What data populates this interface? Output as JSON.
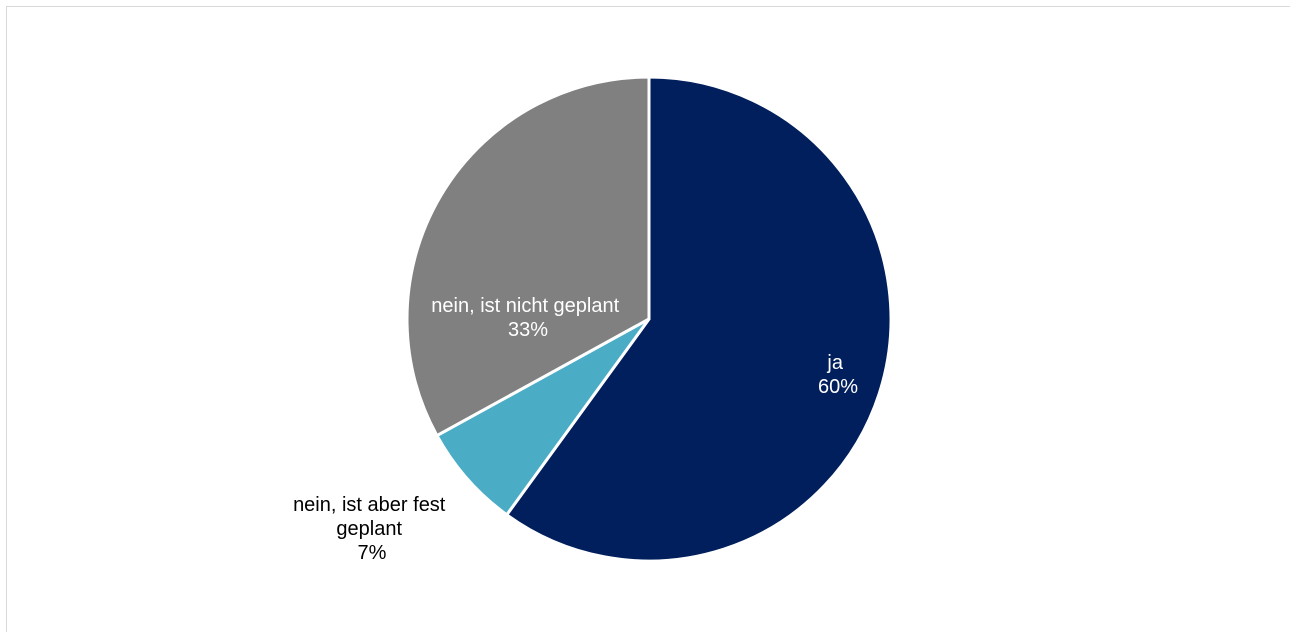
{
  "chart_data": {
    "type": "pie",
    "title": "",
    "start_angle_deg": 0,
    "direction": "clockwise",
    "slices": [
      {
        "label": "ja",
        "percent_label": "60%",
        "value": 60,
        "color": "#001f5c",
        "label_color": "#ffffff"
      },
      {
        "label": "nein, ist aber fest geplant",
        "label_lines": [
          "nein, ist aber fest",
          "geplant"
        ],
        "percent_label": "7%",
        "value": 7,
        "color": "#4bacc6",
        "label_color": "#000000"
      },
      {
        "label": "nein, ist nicht geplant",
        "percent_label": "33%",
        "value": 33,
        "color": "#808080",
        "label_color": "#ffffff"
      }
    ]
  }
}
